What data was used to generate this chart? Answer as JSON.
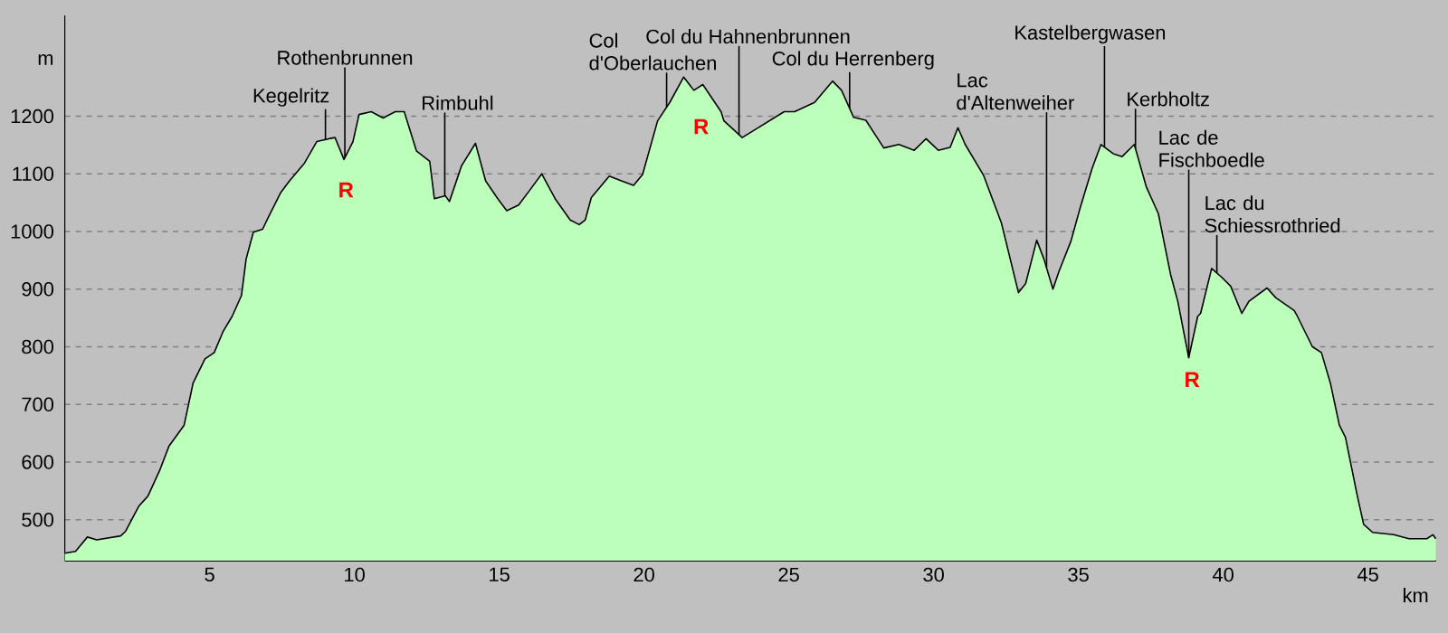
{
  "chart_data": {
    "type": "area",
    "xlabel": "km",
    "ylabel": "m",
    "x": [
      0,
      0.37,
      0.78,
      1.1,
      1.93,
      2.1,
      2.55,
      2.87,
      3.28,
      3.6,
      4.12,
      4.43,
      4.84,
      5.16,
      5.47,
      5.78,
      6.1,
      6.26,
      6.51,
      6.83,
      7.03,
      7.45,
      7.76,
      8.28,
      8.7,
      9.12,
      9.33,
      9.64,
      9.95,
      10.16,
      10.58,
      10.99,
      11.41,
      11.72,
      12.14,
      12.6,
      12.76,
      13.14,
      13.28,
      13.7,
      14.18,
      14.53,
      14.95,
      15.26,
      15.67,
      16.06,
      16.47,
      16.93,
      17.45,
      17.76,
      17.97,
      18.18,
      18.8,
      19.22,
      19.64,
      19.95,
      20.47,
      20.89,
      21.37,
      21.72,
      22.03,
      22.66,
      22.76,
      23.39,
      23.81,
      24.84,
      25.2,
      25.89,
      26.51,
      26.82,
      27.24,
      27.66,
      28.28,
      28.8,
      29.33,
      29.74,
      30.16,
      30.57,
      30.84,
      31.09,
      31.72,
      32.34,
      32.93,
      33.18,
      33.56,
      33.81,
      34.12,
      34.33,
      34.74,
      35.06,
      35.47,
      35.78,
      36.2,
      36.51,
      36.93,
      37.34,
      37.76,
      38.18,
      38.43,
      38.81,
      39.12,
      39.22,
      39.6,
      39.96,
      40.26,
      40.64,
      40.89,
      41.51,
      41.82,
      42.45,
      42.56,
      43.08,
      43.39,
      43.7,
      44.01,
      44.22,
      44.64,
      44.85,
      45.16,
      45.89,
      46.41,
      47.03,
      47.24,
      47.34
    ],
    "series": [
      {
        "color": "#bbffbb",
        "values": [
          442,
          445,
          470,
          465,
          472,
          480,
          523,
          541,
          586,
          628,
          664,
          737,
          779,
          790,
          827,
          853,
          889,
          952,
          999,
          1004,
          1025,
          1067,
          1088,
          1119,
          1156,
          1161,
          1163,
          1125,
          1156,
          1203,
          1208,
          1197,
          1208,
          1208,
          1140,
          1122,
          1057,
          1062,
          1052,
          1114,
          1153,
          1088,
          1057,
          1036,
          1046,
          1072,
          1100,
          1057,
          1020,
          1012,
          1020,
          1059,
          1096,
          1088,
          1080,
          1099,
          1192,
          1224,
          1268,
          1245,
          1255,
          1208,
          1192,
          1163,
          1176,
          1208,
          1208,
          1224,
          1261,
          1245,
          1198,
          1193,
          1145,
          1151,
          1141,
          1161,
          1141,
          1146,
          1180,
          1151,
          1098,
          1015,
          894,
          910,
          985,
          952,
          900,
          931,
          983,
          1041,
          1109,
          1151,
          1135,
          1130,
          1151,
          1078,
          1031,
          926,
          879,
          781,
          853,
          858,
          936,
          920,
          905,
          858,
          879,
          902,
          885,
          863,
          853,
          800,
          790,
          737,
          664,
          643,
          539,
          492,
          478,
          474,
          467,
          467,
          474,
          467
        ]
      }
    ],
    "xlim": [
      0,
      47.35
    ],
    "ylim": [
      429,
      1375
    ],
    "xticks": [
      5,
      10,
      15,
      20,
      25,
      30,
      35,
      40,
      45
    ],
    "yticks": [
      500,
      600,
      700,
      800,
      900,
      1000,
      1100,
      1200
    ],
    "grid": "y",
    "annotations": [
      {
        "text": "Kegelritz",
        "x": 9.0,
        "y": 1159
      },
      {
        "text": "Rothenbrunnen",
        "x": 9.67,
        "y": 1128
      },
      {
        "text": "Rimbuhl",
        "x": 13.12,
        "y": 1062
      },
      {
        "text": "Col d'Oberlauchen",
        "x": 20.78,
        "y": 1216
      },
      {
        "text": "Col du Hahnenbrunnen",
        "x": 23.28,
        "y": 1168
      },
      {
        "text": "Col du Herrenberg",
        "x": 27.1,
        "y": 1214
      },
      {
        "text": "Lac d'Altenweiher",
        "x": 33.9,
        "y": 937
      },
      {
        "text": "Kastelbergwasen",
        "x": 35.9,
        "y": 1146
      },
      {
        "text": "Kerbholtz",
        "x": 36.97,
        "y": 1144
      },
      {
        "text": "Lac de Fischboedle",
        "x": 38.81,
        "y": 781
      },
      {
        "text": "Lac du Schiessrothried",
        "x": 39.78,
        "y": 928
      },
      "R",
      "R",
      "R"
    ]
  }
}
